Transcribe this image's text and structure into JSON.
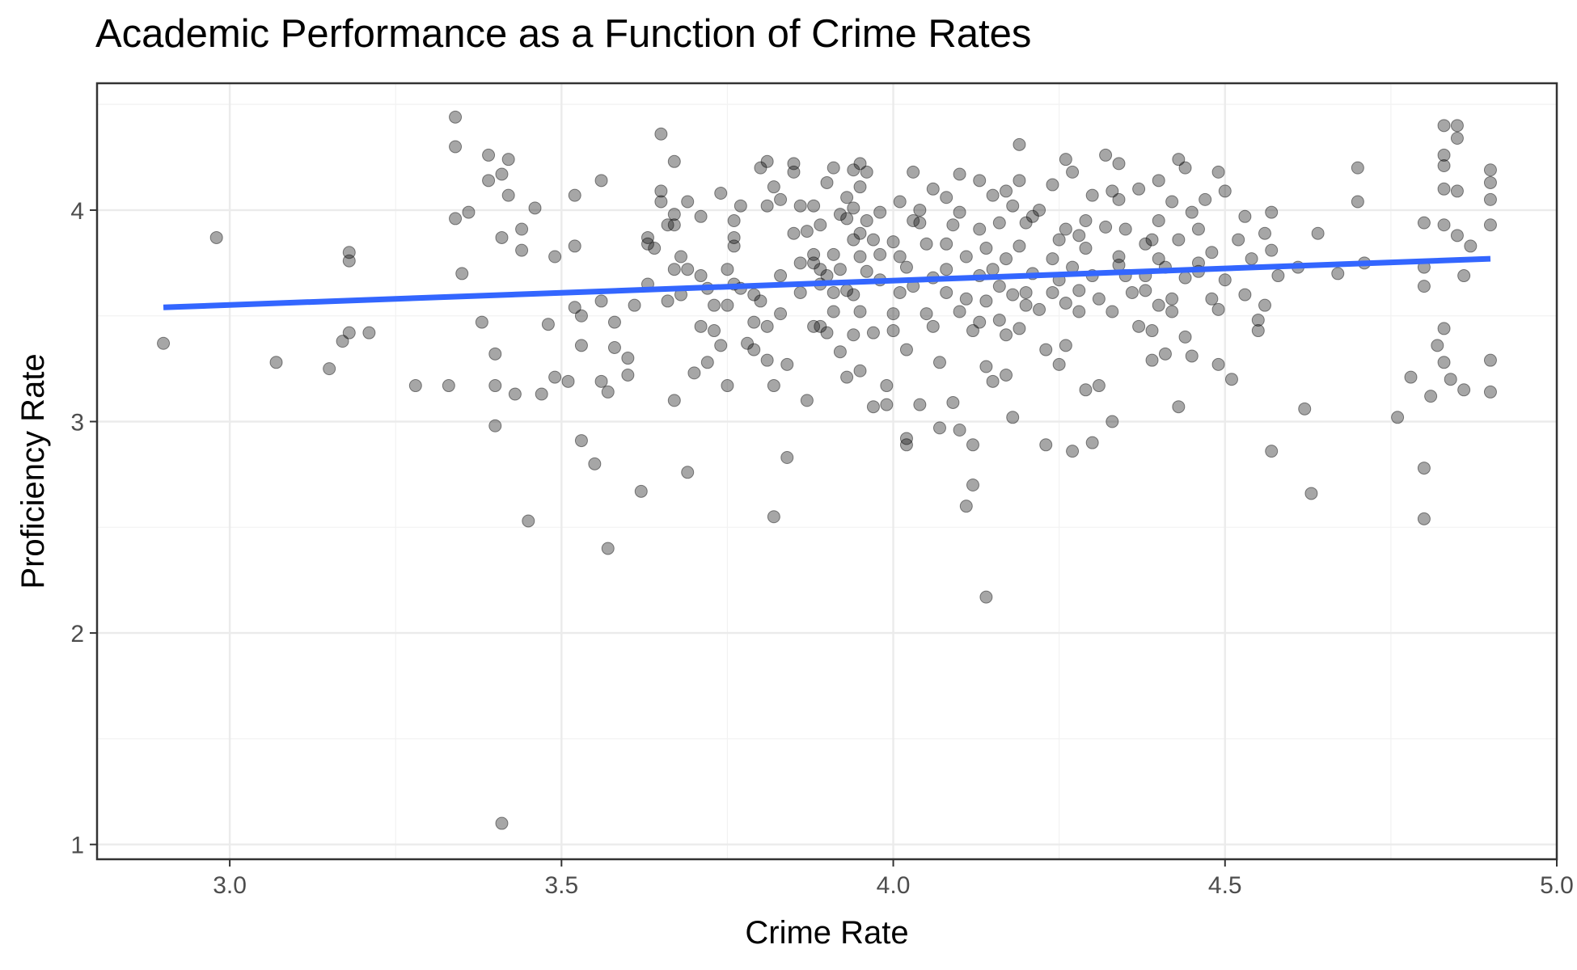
{
  "chart_data": {
    "type": "scatter",
    "title": "Academic Performance as a Function of Crime Rates",
    "xlabel": "Crime Rate",
    "ylabel": "Proficiency Rate",
    "xlim": [
      2.8,
      5.0
    ],
    "ylim": [
      0.93,
      4.6
    ],
    "x_ticks": [
      3.0,
      3.5,
      4.0,
      4.5,
      5.0
    ],
    "x_tick_labels": [
      "3.0",
      "3.5",
      "4.0",
      "4.5",
      "5.0"
    ],
    "y_ticks": [
      1,
      2,
      3,
      4
    ],
    "y_tick_labels": [
      "1",
      "2",
      "3",
      "4"
    ],
    "grid": true,
    "point_color": "#000000",
    "fit_line_color": "#3366FF",
    "fit_line": {
      "x": [
        2.9,
        4.9
      ],
      "y": [
        3.54,
        3.77
      ]
    },
    "points": [
      [
        2.9,
        3.37
      ],
      [
        2.98,
        3.87
      ],
      [
        3.07,
        3.28
      ],
      [
        3.15,
        3.25
      ],
      [
        3.17,
        3.38
      ],
      [
        3.18,
        3.8
      ],
      [
        3.18,
        3.76
      ],
      [
        3.18,
        3.42
      ],
      [
        3.21,
        3.42
      ],
      [
        3.28,
        3.17
      ],
      [
        3.33,
        3.17
      ],
      [
        3.34,
        4.44
      ],
      [
        3.34,
        4.3
      ],
      [
        3.34,
        3.96
      ],
      [
        3.35,
        3.7
      ],
      [
        3.36,
        3.99
      ],
      [
        3.38,
        3.47
      ],
      [
        3.39,
        4.26
      ],
      [
        3.39,
        4.14
      ],
      [
        3.4,
        3.32
      ],
      [
        3.4,
        3.17
      ],
      [
        3.4,
        2.98
      ],
      [
        3.41,
        4.17
      ],
      [
        3.41,
        3.87
      ],
      [
        3.41,
        1.1
      ],
      [
        3.42,
        4.24
      ],
      [
        3.42,
        4.07
      ],
      [
        3.43,
        3.13
      ],
      [
        3.44,
        3.81
      ],
      [
        3.44,
        3.91
      ],
      [
        3.45,
        2.53
      ],
      [
        3.46,
        4.01
      ],
      [
        3.47,
        3.13
      ],
      [
        3.48,
        3.46
      ],
      [
        3.49,
        3.78
      ],
      [
        3.49,
        3.21
      ],
      [
        3.51,
        3.19
      ],
      [
        3.52,
        4.07
      ],
      [
        3.52,
        3.54
      ],
      [
        3.52,
        3.83
      ],
      [
        3.53,
        3.5
      ],
      [
        3.53,
        2.91
      ],
      [
        3.53,
        3.36
      ],
      [
        3.55,
        2.8
      ],
      [
        3.56,
        4.14
      ],
      [
        3.56,
        3.57
      ],
      [
        3.56,
        3.19
      ],
      [
        3.57,
        3.14
      ],
      [
        3.57,
        2.4
      ],
      [
        3.58,
        3.47
      ],
      [
        3.58,
        3.35
      ],
      [
        3.6,
        3.3
      ],
      [
        3.6,
        3.22
      ],
      [
        3.61,
        3.55
      ],
      [
        3.62,
        2.67
      ],
      [
        3.63,
        3.87
      ],
      [
        3.63,
        3.84
      ],
      [
        3.63,
        3.65
      ],
      [
        3.64,
        3.82
      ],
      [
        3.65,
        4.36
      ],
      [
        3.65,
        4.09
      ],
      [
        3.65,
        4.04
      ],
      [
        3.66,
        3.93
      ],
      [
        3.66,
        3.57
      ],
      [
        3.67,
        3.93
      ],
      [
        3.67,
        4.23
      ],
      [
        3.67,
        3.98
      ],
      [
        3.67,
        3.72
      ],
      [
        3.67,
        3.1
      ],
      [
        3.68,
        3.78
      ],
      [
        3.68,
        3.6
      ],
      [
        3.69,
        4.04
      ],
      [
        3.69,
        3.72
      ],
      [
        3.69,
        2.76
      ],
      [
        3.7,
        3.23
      ],
      [
        3.71,
        3.97
      ],
      [
        3.71,
        3.69
      ],
      [
        3.71,
        3.45
      ],
      [
        3.72,
        3.28
      ],
      [
        3.72,
        3.63
      ],
      [
        3.73,
        3.55
      ],
      [
        3.73,
        3.43
      ],
      [
        3.74,
        4.08
      ],
      [
        3.75,
        3.72
      ],
      [
        3.75,
        3.55
      ],
      [
        3.75,
        3.17
      ],
      [
        3.76,
        3.95
      ],
      [
        3.76,
        3.87
      ],
      [
        3.76,
        3.83
      ],
      [
        3.76,
        3.65
      ],
      [
        3.77,
        4.02
      ],
      [
        3.77,
        3.63
      ],
      [
        3.78,
        3.37
      ],
      [
        3.79,
        3.6
      ],
      [
        3.79,
        3.34
      ],
      [
        3.8,
        4.2
      ],
      [
        3.8,
        3.57
      ],
      [
        3.81,
        4.23
      ],
      [
        3.81,
        3.45
      ],
      [
        3.81,
        4.02
      ],
      [
        3.81,
        3.29
      ],
      [
        3.82,
        3.17
      ],
      [
        3.82,
        4.11
      ],
      [
        3.82,
        2.55
      ],
      [
        3.83,
        3.51
      ],
      [
        3.83,
        4.05
      ],
      [
        3.84,
        3.27
      ],
      [
        3.84,
        2.83
      ],
      [
        3.85,
        4.18
      ],
      [
        3.85,
        4.22
      ],
      [
        3.85,
        3.89
      ],
      [
        3.86,
        4.02
      ],
      [
        3.86,
        3.61
      ],
      [
        3.87,
        3.1
      ],
      [
        3.88,
        4.02
      ],
      [
        3.88,
        3.79
      ],
      [
        3.88,
        3.75
      ],
      [
        3.88,
        3.45
      ],
      [
        3.89,
        3.65
      ],
      [
        3.89,
        3.93
      ],
      [
        3.89,
        3.72
      ],
      [
        3.89,
        3.45
      ],
      [
        3.9,
        3.69
      ],
      [
        3.9,
        3.42
      ],
      [
        3.9,
        4.13
      ],
      [
        3.91,
        4.2
      ],
      [
        3.91,
        3.79
      ],
      [
        3.91,
        3.52
      ],
      [
        3.92,
        3.33
      ],
      [
        3.92,
        3.72
      ],
      [
        3.93,
        4.06
      ],
      [
        3.93,
        3.96
      ],
      [
        3.93,
        3.62
      ],
      [
        3.93,
        3.21
      ],
      [
        3.94,
        4.19
      ],
      [
        3.94,
        4.01
      ],
      [
        3.94,
        3.86
      ],
      [
        3.94,
        3.6
      ],
      [
        3.94,
        3.41
      ],
      [
        3.95,
        4.22
      ],
      [
        3.95,
        4.11
      ],
      [
        3.95,
        3.89
      ],
      [
        3.95,
        3.78
      ],
      [
        3.95,
        3.24
      ],
      [
        3.96,
        4.18
      ],
      [
        3.96,
        3.95
      ],
      [
        3.96,
        3.71
      ],
      [
        3.97,
        3.42
      ],
      [
        3.97,
        3.07
      ],
      [
        3.98,
        3.99
      ],
      [
        3.98,
        3.67
      ],
      [
        3.99,
        3.17
      ],
      [
        3.99,
        3.08
      ],
      [
        4.0,
        3.85
      ],
      [
        4.0,
        3.51
      ],
      [
        4.0,
        3.43
      ],
      [
        4.01,
        4.04
      ],
      [
        4.01,
        3.78
      ],
      [
        4.01,
        3.61
      ],
      [
        4.02,
        2.92
      ],
      [
        4.02,
        2.89
      ],
      [
        4.02,
        3.34
      ],
      [
        4.03,
        4.18
      ],
      [
        4.03,
        3.95
      ],
      [
        4.03,
        3.64
      ],
      [
        4.04,
        4.0
      ],
      [
        4.04,
        3.08
      ],
      [
        4.05,
        3.84
      ],
      [
        4.05,
        3.51
      ],
      [
        4.06,
        4.1
      ],
      [
        4.06,
        3.68
      ],
      [
        4.07,
        3.28
      ],
      [
        4.07,
        2.97
      ],
      [
        4.08,
        4.06
      ],
      [
        4.08,
        3.84
      ],
      [
        4.08,
        3.61
      ],
      [
        4.09,
        3.09
      ],
      [
        4.09,
        3.93
      ],
      [
        4.1,
        4.17
      ],
      [
        4.1,
        3.99
      ],
      [
        4.1,
        3.52
      ],
      [
        4.1,
        2.96
      ],
      [
        4.11,
        3.78
      ],
      [
        4.11,
        2.6
      ],
      [
        4.12,
        2.7
      ],
      [
        4.12,
        2.89
      ],
      [
        4.13,
        3.47
      ],
      [
        4.13,
        3.69
      ],
      [
        4.13,
        4.14
      ],
      [
        4.14,
        3.57
      ],
      [
        4.14,
        3.82
      ],
      [
        4.14,
        3.26
      ],
      [
        4.14,
        2.17
      ],
      [
        4.15,
        4.07
      ],
      [
        4.15,
        3.72
      ],
      [
        4.15,
        3.19
      ],
      [
        4.16,
        3.94
      ],
      [
        4.16,
        3.48
      ],
      [
        4.17,
        4.09
      ],
      [
        4.17,
        3.41
      ],
      [
        4.17,
        3.22
      ],
      [
        4.18,
        4.02
      ],
      [
        4.18,
        3.6
      ],
      [
        4.18,
        3.02
      ],
      [
        4.19,
        4.31
      ],
      [
        4.19,
        4.14
      ],
      [
        4.19,
        3.83
      ],
      [
        4.19,
        3.44
      ],
      [
        4.2,
        3.94
      ],
      [
        4.2,
        3.61
      ],
      [
        4.21,
        3.7
      ],
      [
        4.22,
        4.0
      ],
      [
        4.22,
        3.53
      ],
      [
        4.23,
        2.89
      ],
      [
        4.23,
        3.34
      ],
      [
        4.24,
        4.12
      ],
      [
        4.24,
        3.61
      ],
      [
        4.25,
        3.86
      ],
      [
        4.25,
        3.27
      ],
      [
        4.26,
        4.24
      ],
      [
        4.26,
        3.91
      ],
      [
        4.26,
        3.56
      ],
      [
        4.26,
        3.36
      ],
      [
        4.27,
        4.18
      ],
      [
        4.27,
        3.73
      ],
      [
        4.27,
        2.86
      ],
      [
        4.28,
        3.88
      ],
      [
        4.28,
        3.52
      ],
      [
        4.29,
        3.82
      ],
      [
        4.29,
        3.15
      ],
      [
        4.3,
        4.07
      ],
      [
        4.3,
        3.69
      ],
      [
        4.3,
        2.9
      ],
      [
        4.31,
        3.17
      ],
      [
        4.32,
        4.26
      ],
      [
        4.32,
        3.92
      ],
      [
        4.33,
        4.09
      ],
      [
        4.33,
        3.52
      ],
      [
        4.33,
        3.0
      ],
      [
        4.34,
        4.22
      ],
      [
        4.34,
        4.05
      ],
      [
        4.34,
        3.78
      ],
      [
        4.35,
        3.69
      ],
      [
        4.36,
        3.61
      ],
      [
        4.37,
        4.1
      ],
      [
        4.37,
        3.45
      ],
      [
        4.38,
        3.84
      ],
      [
        4.38,
        3.62
      ],
      [
        4.39,
        3.43
      ],
      [
        4.39,
        3.29
      ],
      [
        4.4,
        4.14
      ],
      [
        4.4,
        3.95
      ],
      [
        4.4,
        3.77
      ],
      [
        4.4,
        3.55
      ],
      [
        4.41,
        3.73
      ],
      [
        4.41,
        3.32
      ],
      [
        4.42,
        4.04
      ],
      [
        4.42,
        3.58
      ],
      [
        4.43,
        4.24
      ],
      [
        4.43,
        3.86
      ],
      [
        4.43,
        3.07
      ],
      [
        4.44,
        4.2
      ],
      [
        4.44,
        3.68
      ],
      [
        4.45,
        3.99
      ],
      [
        4.45,
        3.31
      ],
      [
        4.46,
        3.91
      ],
      [
        4.46,
        3.71
      ],
      [
        4.47,
        4.05
      ],
      [
        4.48,
        3.8
      ],
      [
        4.48,
        3.58
      ],
      [
        4.49,
        4.18
      ],
      [
        4.49,
        3.27
      ],
      [
        4.5,
        4.09
      ],
      [
        4.5,
        3.67
      ],
      [
        4.51,
        3.2
      ],
      [
        4.52,
        3.86
      ],
      [
        4.53,
        3.6
      ],
      [
        4.54,
        3.77
      ],
      [
        4.55,
        3.48
      ],
      [
        4.55,
        3.43
      ],
      [
        4.56,
        3.89
      ],
      [
        4.56,
        3.55
      ],
      [
        4.57,
        3.99
      ],
      [
        4.57,
        2.86
      ],
      [
        4.58,
        3.69
      ],
      [
        4.61,
        3.73
      ],
      [
        4.62,
        3.06
      ],
      [
        4.63,
        2.66
      ],
      [
        4.64,
        3.89
      ],
      [
        4.67,
        3.7
      ],
      [
        4.7,
        4.2
      ],
      [
        4.7,
        4.04
      ],
      [
        4.71,
        3.75
      ],
      [
        4.76,
        3.02
      ],
      [
        4.78,
        3.21
      ],
      [
        4.8,
        3.94
      ],
      [
        4.8,
        3.73
      ],
      [
        4.8,
        3.64
      ],
      [
        4.8,
        2.78
      ],
      [
        4.8,
        2.54
      ],
      [
        4.81,
        3.12
      ],
      [
        4.82,
        3.36
      ],
      [
        4.83,
        4.4
      ],
      [
        4.83,
        4.26
      ],
      [
        4.83,
        4.21
      ],
      [
        4.83,
        4.1
      ],
      [
        4.83,
        3.93
      ],
      [
        4.83,
        3.44
      ],
      [
        4.83,
        3.28
      ],
      [
        4.84,
        3.2
      ],
      [
        4.85,
        4.4
      ],
      [
        4.85,
        4.34
      ],
      [
        4.85,
        4.09
      ],
      [
        4.85,
        3.88
      ],
      [
        4.86,
        3.69
      ],
      [
        4.86,
        3.15
      ],
      [
        4.87,
        3.83
      ],
      [
        4.9,
        4.19
      ],
      [
        4.9,
        4.13
      ],
      [
        4.9,
        4.05
      ],
      [
        4.9,
        3.93
      ],
      [
        4.9,
        3.29
      ],
      [
        4.9,
        3.14
      ],
      [
        3.86,
        3.75
      ],
      [
        3.92,
        3.98
      ],
      [
        3.97,
        3.86
      ],
      [
        4.02,
        3.73
      ],
      [
        4.06,
        3.45
      ],
      [
        4.11,
        3.58
      ],
      [
        4.13,
        3.91
      ],
      [
        4.16,
        3.64
      ],
      [
        4.21,
        3.97
      ],
      [
        4.24,
        3.77
      ],
      [
        4.28,
        3.62
      ],
      [
        4.31,
        3.58
      ],
      [
        4.35,
        3.91
      ],
      [
        4.38,
        3.69
      ],
      [
        4.42,
        3.52
      ],
      [
        4.46,
        3.75
      ],
      [
        3.74,
        3.36
      ],
      [
        3.79,
        3.47
      ],
      [
        3.83,
        3.69
      ],
      [
        3.87,
        3.9
      ],
      [
        3.91,
        3.61
      ],
      [
        3.95,
        3.52
      ],
      [
        3.98,
        3.79
      ],
      [
        4.04,
        3.94
      ],
      [
        4.08,
        3.72
      ],
      [
        4.12,
        3.43
      ],
      [
        4.17,
        3.77
      ],
      [
        4.2,
        3.55
      ],
      [
        4.25,
        3.67
      ],
      [
        4.29,
        3.95
      ],
      [
        4.34,
        3.74
      ],
      [
        4.39,
        3.86
      ],
      [
        4.44,
        3.4
      ],
      [
        4.49,
        3.53
      ],
      [
        4.53,
        3.97
      ],
      [
        4.57,
        3.81
      ]
    ]
  }
}
